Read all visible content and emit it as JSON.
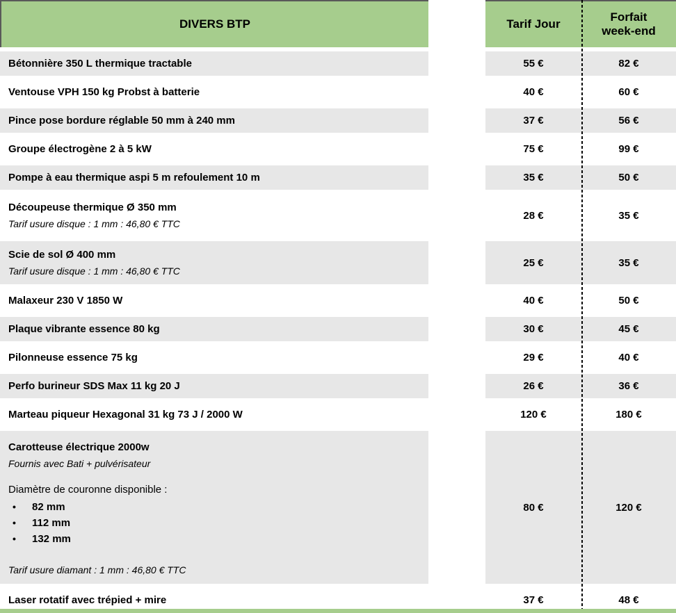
{
  "table": {
    "header": {
      "title": "DIVERS BTP",
      "col_day": "Tarif Jour",
      "col_weekend": "Forfait week-end"
    },
    "rows": [
      {
        "name": "Bétonnière 350 L thermique tractable",
        "day": "55 €",
        "weekend": "82 €"
      },
      {
        "name": "Ventouse VPH 150 kg Probst à batterie",
        "day": "40 €",
        "weekend": "60 €"
      },
      {
        "name": "Pince pose bordure réglable 50 mm à 240 mm",
        "day": "37 €",
        "weekend": "56 €"
      },
      {
        "name": "Groupe électrogène 2 à 5 kW",
        "day": "75 €",
        "weekend": "99 €"
      },
      {
        "name": "Pompe à eau thermique aspi 5 m refoulement 10 m",
        "day": "35 €",
        "weekend": "50 €"
      },
      {
        "name": "Découpeuse thermique Ø 350 mm",
        "note": "Tarif usure disque : 1 mm : 46,80 € TTC",
        "day": "28 €",
        "weekend": "35 €"
      },
      {
        "name": "Scie de sol Ø 400 mm",
        "note": "Tarif usure disque : 1 mm : 46,80 € TTC",
        "day": "25 €",
        "weekend": "35 €"
      },
      {
        "name": "Malaxeur 230 V 1850 W",
        "day": "40 €",
        "weekend": "50 €"
      },
      {
        "name": "Plaque vibrante essence 80 kg",
        "day": "30 €",
        "weekend": "45 €"
      },
      {
        "name": "Pilonneuse essence 75 kg",
        "day": "29 €",
        "weekend": "40 €"
      },
      {
        "name": "Perfo burineur SDS Max 11 kg 20 J",
        "day": "26 €",
        "weekend": "36 €"
      },
      {
        "name": "Marteau piqueur Hexagonal 31 kg 73 J / 2000 W",
        "day": "120 €",
        "weekend": "180 €"
      },
      {
        "name": "Carotteuse électrique 2000w",
        "note": "Fournis avec Bati + pulvérisateur",
        "section": "Diamètre de couronne disponible :",
        "bullets": [
          "82 mm",
          "112 mm",
          "132 mm"
        ],
        "bullet_marker": "•",
        "footnote": "Tarif usure diamant : 1 mm : 46,80 € TTC",
        "day": "80 €",
        "weekend": "120 €"
      },
      {
        "name": "Laser rotatif avec trépied + mire",
        "day": "37 €",
        "weekend": "48 €"
      }
    ]
  },
  "colors": {
    "green": "#a6cd8d",
    "gray": "#e7e7e7",
    "border": "#595959",
    "dash": "#000000",
    "text": "#000000"
  }
}
